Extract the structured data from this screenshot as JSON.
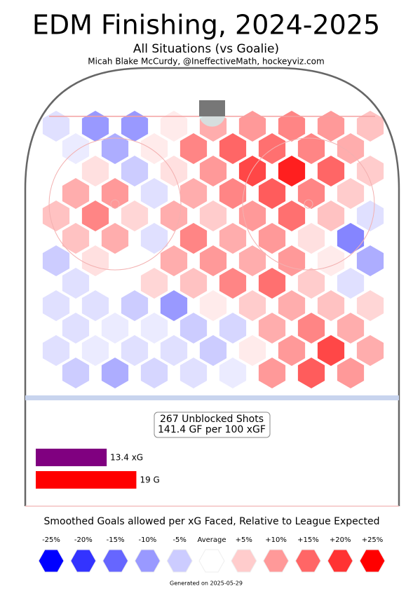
{
  "chart_data": {
    "type": "hexbin",
    "title": "EDM Finishing, 2024-2025",
    "subtitle": "All Situations (vs Goalie)",
    "credit": "Micah Blake McCurdy, @IneffectiveMath, hockeyviz.com",
    "shots_label": "267 Unblocked Shots",
    "rate_label": "141.4 GF per 100 xGF",
    "low_color": "#0000ff",
    "mid_color": "#ffffff",
    "high_color": "#ff0000",
    "rows": [
      [
        -3,
        -10,
        -10,
        2,
        8,
        10,
        12,
        10,
        6
      ],
      [
        -2,
        -8,
        2,
        12,
        15,
        14,
        12,
        8
      ],
      [
        0,
        3,
        -5,
        3,
        10,
        18,
        22,
        15,
        5
      ],
      [
        8,
        10,
        -3,
        8,
        12,
        16,
        12,
        5
      ],
      [
        6,
        12,
        4,
        8,
        5,
        10,
        14,
        6,
        -3
      ],
      [
        6,
        8,
        -3,
        12,
        8,
        10,
        3,
        -12
      ],
      [
        -5,
        3,
        0,
        8,
        10,
        8,
        10,
        2,
        -8
      ],
      [
        -3,
        0,
        4,
        6,
        12,
        14,
        5,
        -3
      ],
      [
        -3,
        -3,
        -5,
        -10,
        2,
        5,
        8,
        6,
        4
      ],
      [
        -3,
        -2,
        -2,
        -5,
        -4,
        8,
        12,
        8
      ],
      [
        -3,
        -2,
        -3,
        -3,
        -5,
        2,
        10,
        18,
        8
      ],
      [
        -5,
        -8,
        -4,
        -3,
        -2,
        10,
        16,
        10
      ]
    ],
    "bars": {
      "type": "bar",
      "values": [
        13.4,
        19
      ],
      "value_labels": [
        "13.4 xG",
        "19 G"
      ],
      "colors": [
        "#800080",
        "#ff0000"
      ]
    },
    "legend": {
      "title": "Smoothed Goals allowed per xG Faced, Relative to League Expected",
      "values": [
        -25,
        -20,
        -15,
        -10,
        -5,
        0,
        5,
        10,
        15,
        20,
        25
      ],
      "value_labels": [
        "-25%",
        "-20%",
        "-15%",
        "-10%",
        "-5%",
        "Average",
        "+5%",
        "+10%",
        "+15%",
        "+20%",
        "+25%"
      ]
    },
    "footer": "Generated on 2025-05-29"
  }
}
